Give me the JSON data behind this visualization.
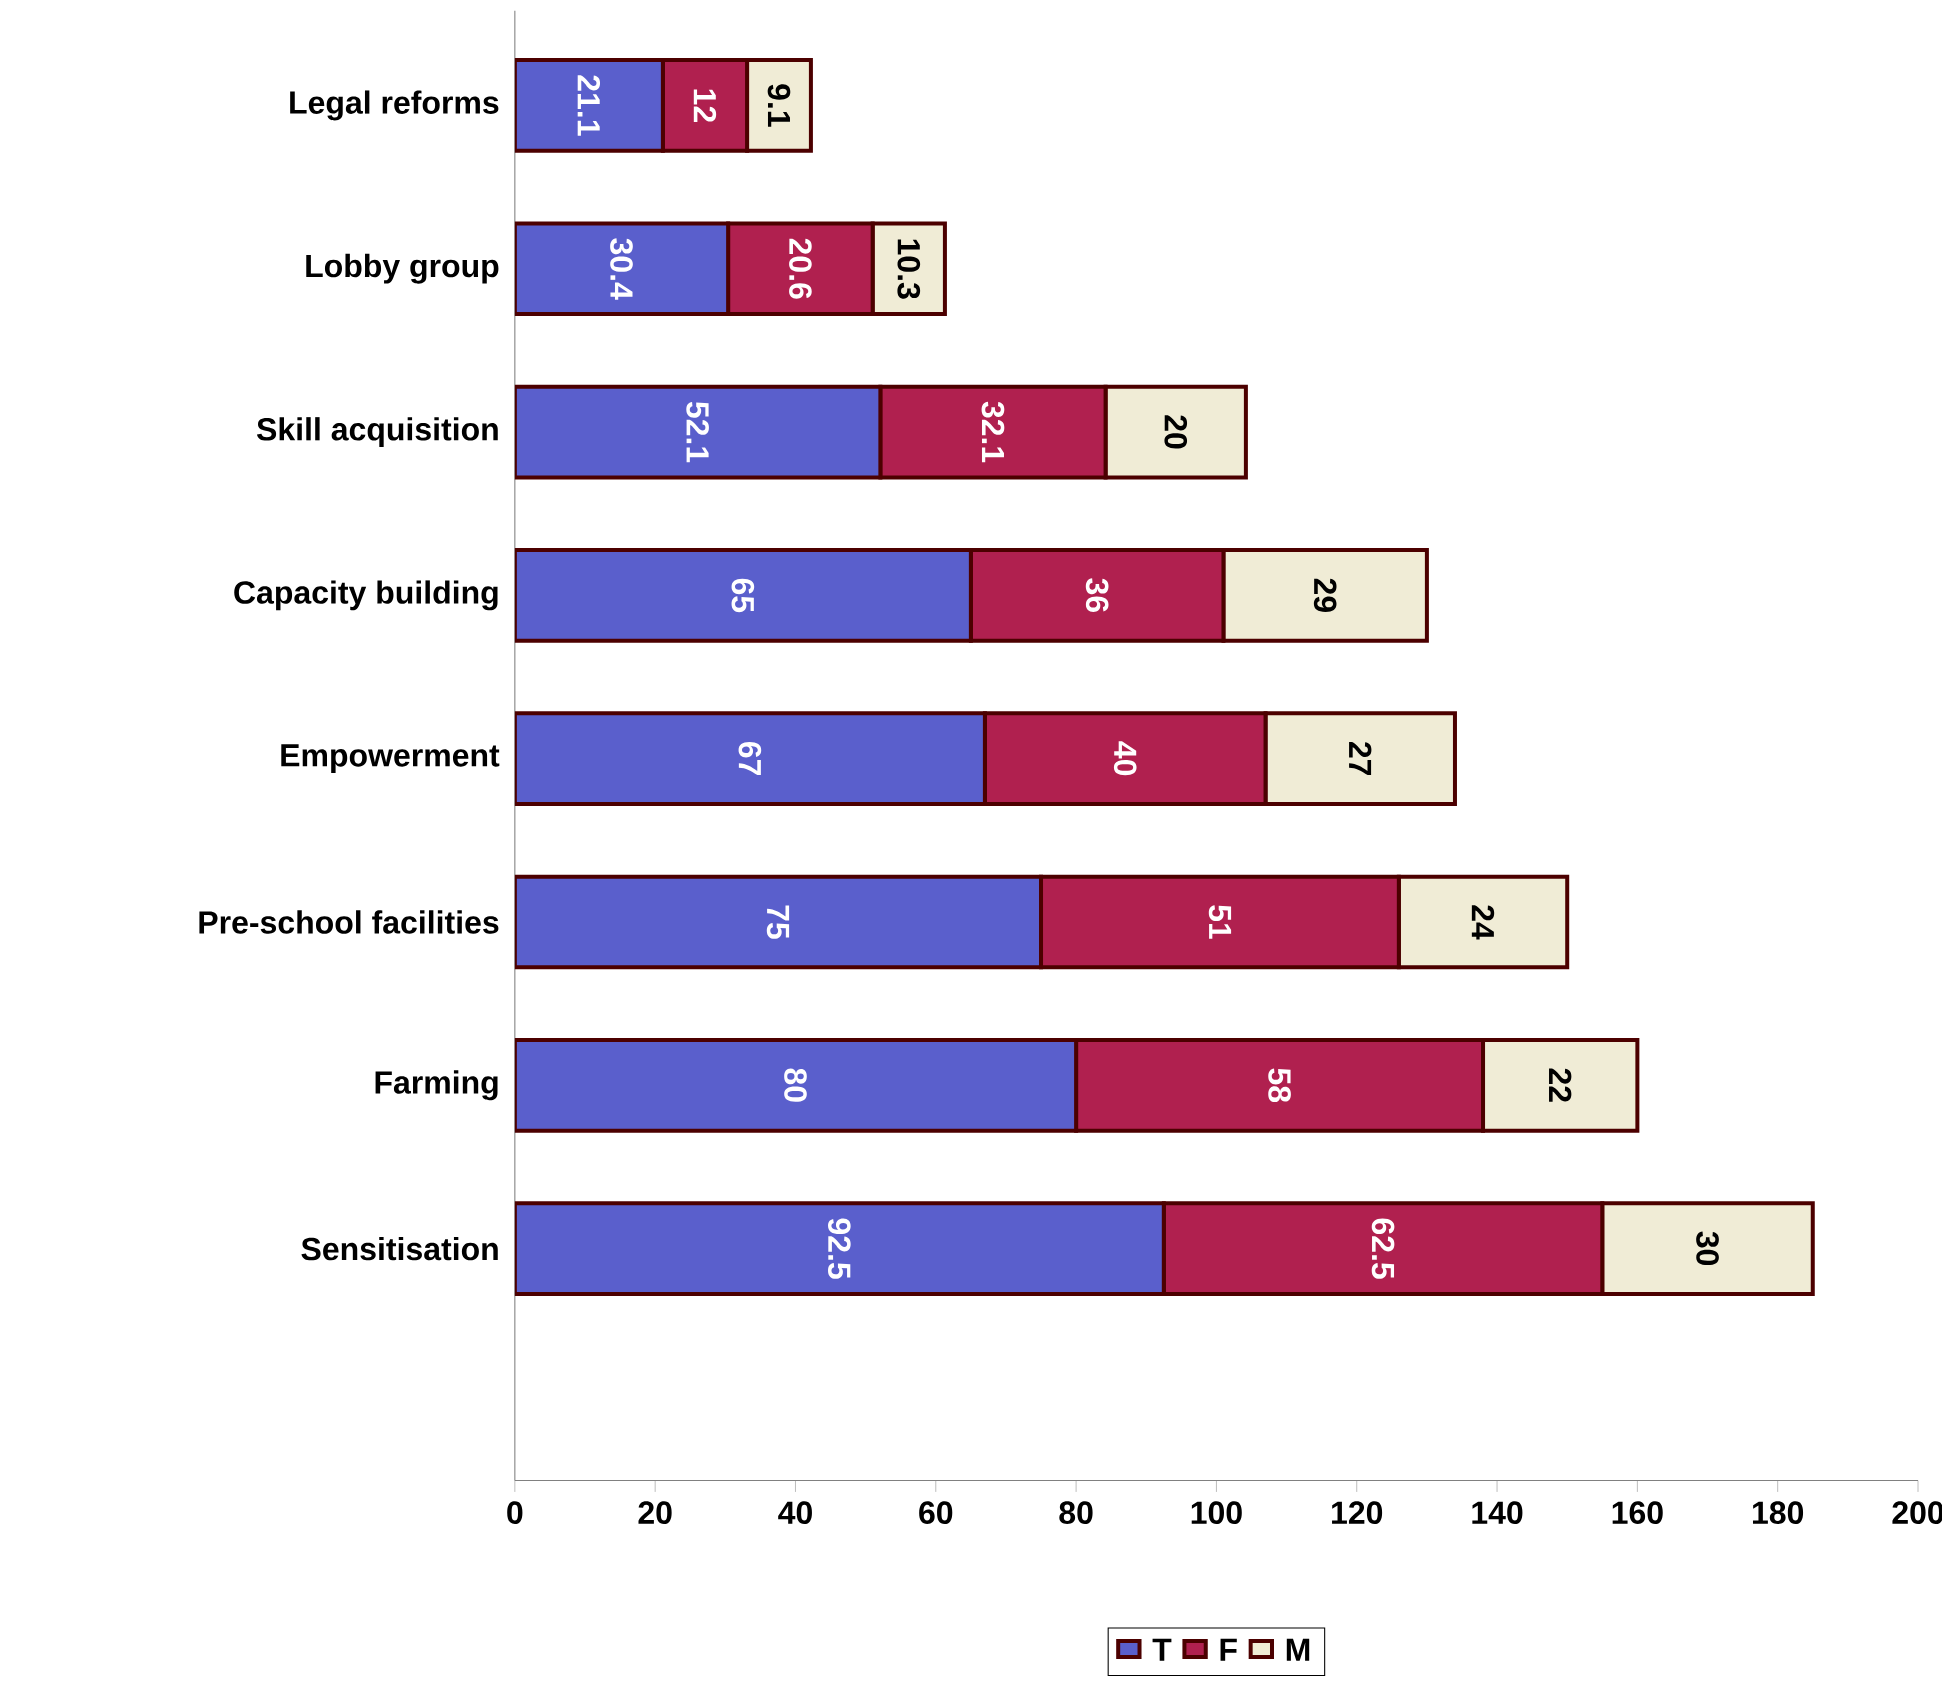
{
  "chart_data": {
    "type": "bar",
    "orientation": "horizontal",
    "stacked": true,
    "categories": [
      "Legal reforms",
      "Lobby group",
      "Skill acquisition",
      "Capacity building",
      "Empowerment",
      "Pre-school facilities",
      "Farming",
      "Sensitisation"
    ],
    "series": [
      {
        "name": "T",
        "color": "#5a5fcc",
        "values": [
          21.1,
          30.4,
          52.1,
          65,
          67,
          75,
          80,
          92.5
        ],
        "value_labels": [
          "21.1",
          "30.4",
          "52.1",
          "65",
          "67",
          "75",
          "80",
          "92.5"
        ]
      },
      {
        "name": "F",
        "color": "#b0204f",
        "values": [
          12,
          20.6,
          32.1,
          36,
          40,
          51,
          58,
          62.5
        ],
        "value_labels": [
          "12",
          "20.6",
          "32.1",
          "36",
          "40",
          "51",
          "58",
          "62.5"
        ]
      },
      {
        "name": "M",
        "color": "#f0ecd6",
        "values": [
          9.1,
          10.3,
          20,
          29,
          27,
          24,
          22,
          30
        ],
        "value_labels": [
          "9.1",
          "10.3",
          "20",
          "29",
          "27",
          "24",
          "22",
          "30"
        ]
      }
    ],
    "xlim": [
      0,
      200
    ],
    "xticks": [
      0,
      20,
      40,
      60,
      80,
      100,
      120,
      140,
      160,
      180,
      200
    ],
    "grid": false,
    "legend": "bottom"
  }
}
